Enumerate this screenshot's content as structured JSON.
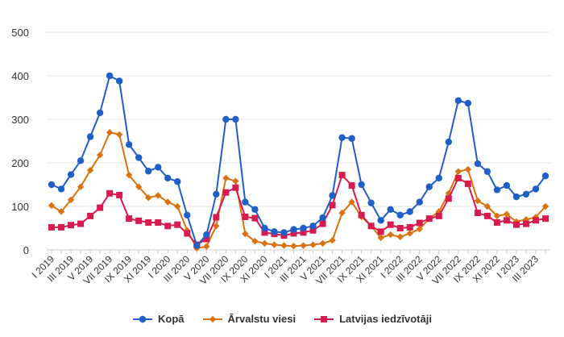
{
  "chart_data": {
    "type": "line",
    "title": "",
    "xlabel": "",
    "ylabel": "",
    "ylim": [
      0,
      500
    ],
    "yticks": [
      0,
      100,
      200,
      300,
      400,
      500
    ],
    "grid": "horizontal",
    "legend_position": "bottom",
    "x": [
      "I 2019",
      "II 2019",
      "III 2019",
      "IV 2019",
      "V 2019",
      "VI 2019",
      "VII 2019",
      "VIII 2019",
      "IX 2019",
      "X 2019",
      "XI 2019",
      "XII 2019",
      "I 2020",
      "II 2020",
      "III 2020",
      "IV 2020",
      "V 2020",
      "VI 2020",
      "VII 2020",
      "VIII 2020",
      "IX 2020",
      "X 2020",
      "XI 2020",
      "XII 2020",
      "I 2021",
      "II 2021",
      "III 2021",
      "IV 2021",
      "V 2021",
      "VI 2021",
      "VII 2021",
      "VIII 2021",
      "IX 2021",
      "X 2021",
      "XI 2021",
      "XII 2021",
      "I 2022",
      "II 2022",
      "III 2022",
      "IV 2022",
      "V 2022",
      "VI 2022",
      "VII 2022",
      "VIII 2022",
      "IX 2022",
      "X 2022",
      "XI 2022",
      "XII 2022",
      "I 2023",
      "II 2023",
      "III 2023",
      "IV 2023"
    ],
    "xtick_labels": [
      "I 2019",
      "III 2019",
      "V 2019",
      "VII 2019",
      "IX 2019",
      "XI 2019",
      "I 2020",
      "III 2020",
      "V 2020",
      "VII 2020",
      "IX 2020",
      "XI 2020",
      "I 2021",
      "III 2021",
      "V 2021",
      "VII 2021",
      "IX 2021",
      "XI 2021",
      "I 2022",
      "III 2022",
      "V 2022",
      "VII 2022",
      "IX 2022",
      "XI 2022",
      "I 2023",
      "III 2023"
    ],
    "series": [
      {
        "name": "Kopā",
        "color": "#1f5fc8",
        "marker": "circle",
        "values": [
          150,
          140,
          173,
          205,
          260,
          315,
          400,
          388,
          242,
          212,
          181,
          190,
          165,
          157,
          80,
          10,
          35,
          128,
          300,
          300,
          110,
          93,
          50,
          42,
          40,
          47,
          50,
          55,
          74,
          125,
          258,
          256,
          150,
          108,
          68,
          93,
          80,
          88,
          110,
          145,
          165,
          248,
          343,
          337,
          198,
          180,
          138,
          148,
          122,
          128,
          140,
          170
        ]
      },
      {
        "name": "Ārvalstu viesi",
        "color": "#d9720f",
        "marker": "diamond",
        "values": [
          102,
          88,
          115,
          145,
          183,
          218,
          270,
          265,
          172,
          145,
          120,
          125,
          110,
          100,
          45,
          4,
          8,
          55,
          165,
          158,
          37,
          20,
          15,
          12,
          10,
          9,
          10,
          12,
          15,
          22,
          85,
          110,
          76,
          55,
          28,
          35,
          30,
          38,
          48,
          72,
          88,
          130,
          180,
          185,
          113,
          100,
          78,
          82,
          65,
          70,
          75,
          100
        ]
      },
      {
        "name": "Latvijas iedzīvotāji",
        "color": "#d81b4f",
        "marker": "square",
        "values": [
          52,
          52,
          57,
          60,
          78,
          97,
          130,
          126,
          72,
          67,
          63,
          63,
          55,
          58,
          38,
          12,
          25,
          75,
          132,
          143,
          76,
          73,
          40,
          37,
          33,
          38,
          40,
          45,
          60,
          103,
          172,
          148,
          80,
          55,
          42,
          58,
          50,
          52,
          62,
          72,
          78,
          118,
          165,
          152,
          85,
          78,
          63,
          68,
          58,
          60,
          68,
          72
        ]
      }
    ]
  }
}
